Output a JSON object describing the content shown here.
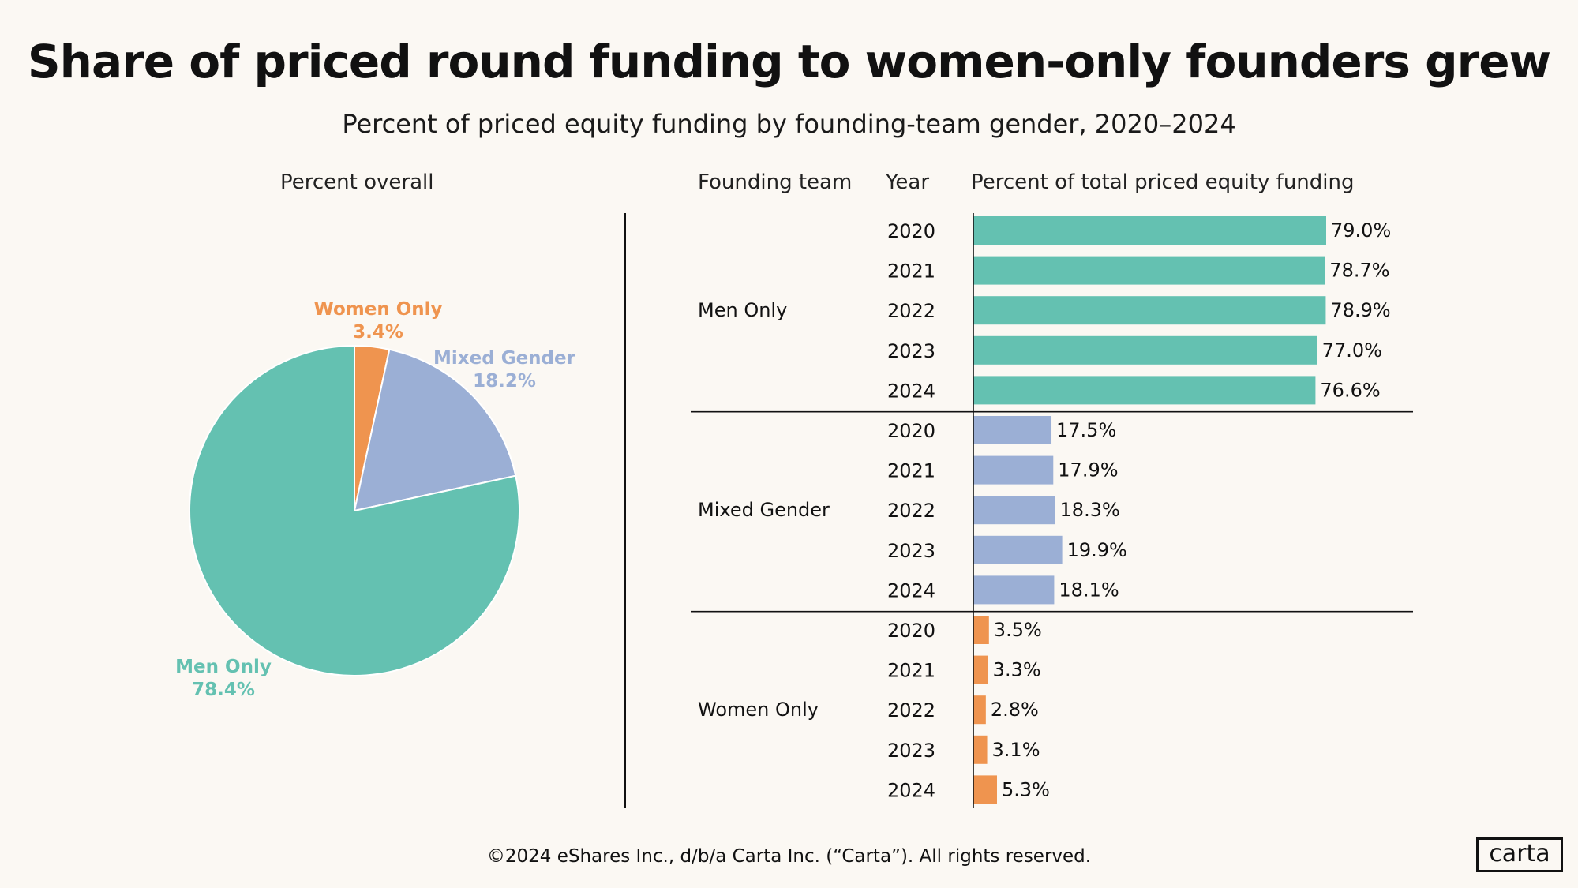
{
  "title": "Share of priced round funding to women-only founders grew",
  "subtitle": "Percent of priced equity funding by founding-team gender, 2020–2024",
  "headers": {
    "pie": "Percent overall",
    "founding_team": "Founding team",
    "year": "Year",
    "bar": "Percent of total priced equity funding"
  },
  "footer": "©2024 eShares Inc., d/b/a Carta Inc. (“Carta”). All rights reserved.",
  "logo": "carta",
  "colors": {
    "men": "#64c1b1",
    "mixed": "#9bafd5",
    "women": "#ef944f",
    "background": "#fbf8f3"
  },
  "chart_data": [
    {
      "type": "pie",
      "title": "Percent overall",
      "slices": [
        {
          "name": "Women Only",
          "value": 3.4,
          "label": "3.4%",
          "color": "#ef944f"
        },
        {
          "name": "Mixed Gender",
          "value": 18.2,
          "label": "18.2%",
          "color": "#9bafd5"
        },
        {
          "name": "Men Only",
          "value": 78.4,
          "label": "78.4%",
          "color": "#64c1b1"
        }
      ]
    },
    {
      "type": "bar",
      "orientation": "horizontal",
      "title": "Percent of total priced equity funding",
      "xlim": [
        0,
        100
      ],
      "groups": [
        {
          "name": "Men Only",
          "color": "#64c1b1",
          "bars": [
            {
              "year": "2020",
              "value": 79.0,
              "label": "79.0%"
            },
            {
              "year": "2021",
              "value": 78.7,
              "label": "78.7%"
            },
            {
              "year": "2022",
              "value": 78.9,
              "label": "78.9%"
            },
            {
              "year": "2023",
              "value": 77.0,
              "label": "77.0%"
            },
            {
              "year": "2024",
              "value": 76.6,
              "label": "76.6%"
            }
          ]
        },
        {
          "name": "Mixed Gender",
          "color": "#9bafd5",
          "bars": [
            {
              "year": "2020",
              "value": 17.5,
              "label": "17.5%"
            },
            {
              "year": "2021",
              "value": 17.9,
              "label": "17.9%"
            },
            {
              "year": "2022",
              "value": 18.3,
              "label": "18.3%"
            },
            {
              "year": "2023",
              "value": 19.9,
              "label": "19.9%"
            },
            {
              "year": "2024",
              "value": 18.1,
              "label": "18.1%"
            }
          ]
        },
        {
          "name": "Women Only",
          "color": "#ef944f",
          "bars": [
            {
              "year": "2020",
              "value": 3.5,
              "label": "3.5%"
            },
            {
              "year": "2021",
              "value": 3.3,
              "label": "3.3%"
            },
            {
              "year": "2022",
              "value": 2.8,
              "label": "2.8%"
            },
            {
              "year": "2023",
              "value": 3.1,
              "label": "3.1%"
            },
            {
              "year": "2024",
              "value": 5.3,
              "label": "5.3%"
            }
          ]
        }
      ]
    }
  ]
}
